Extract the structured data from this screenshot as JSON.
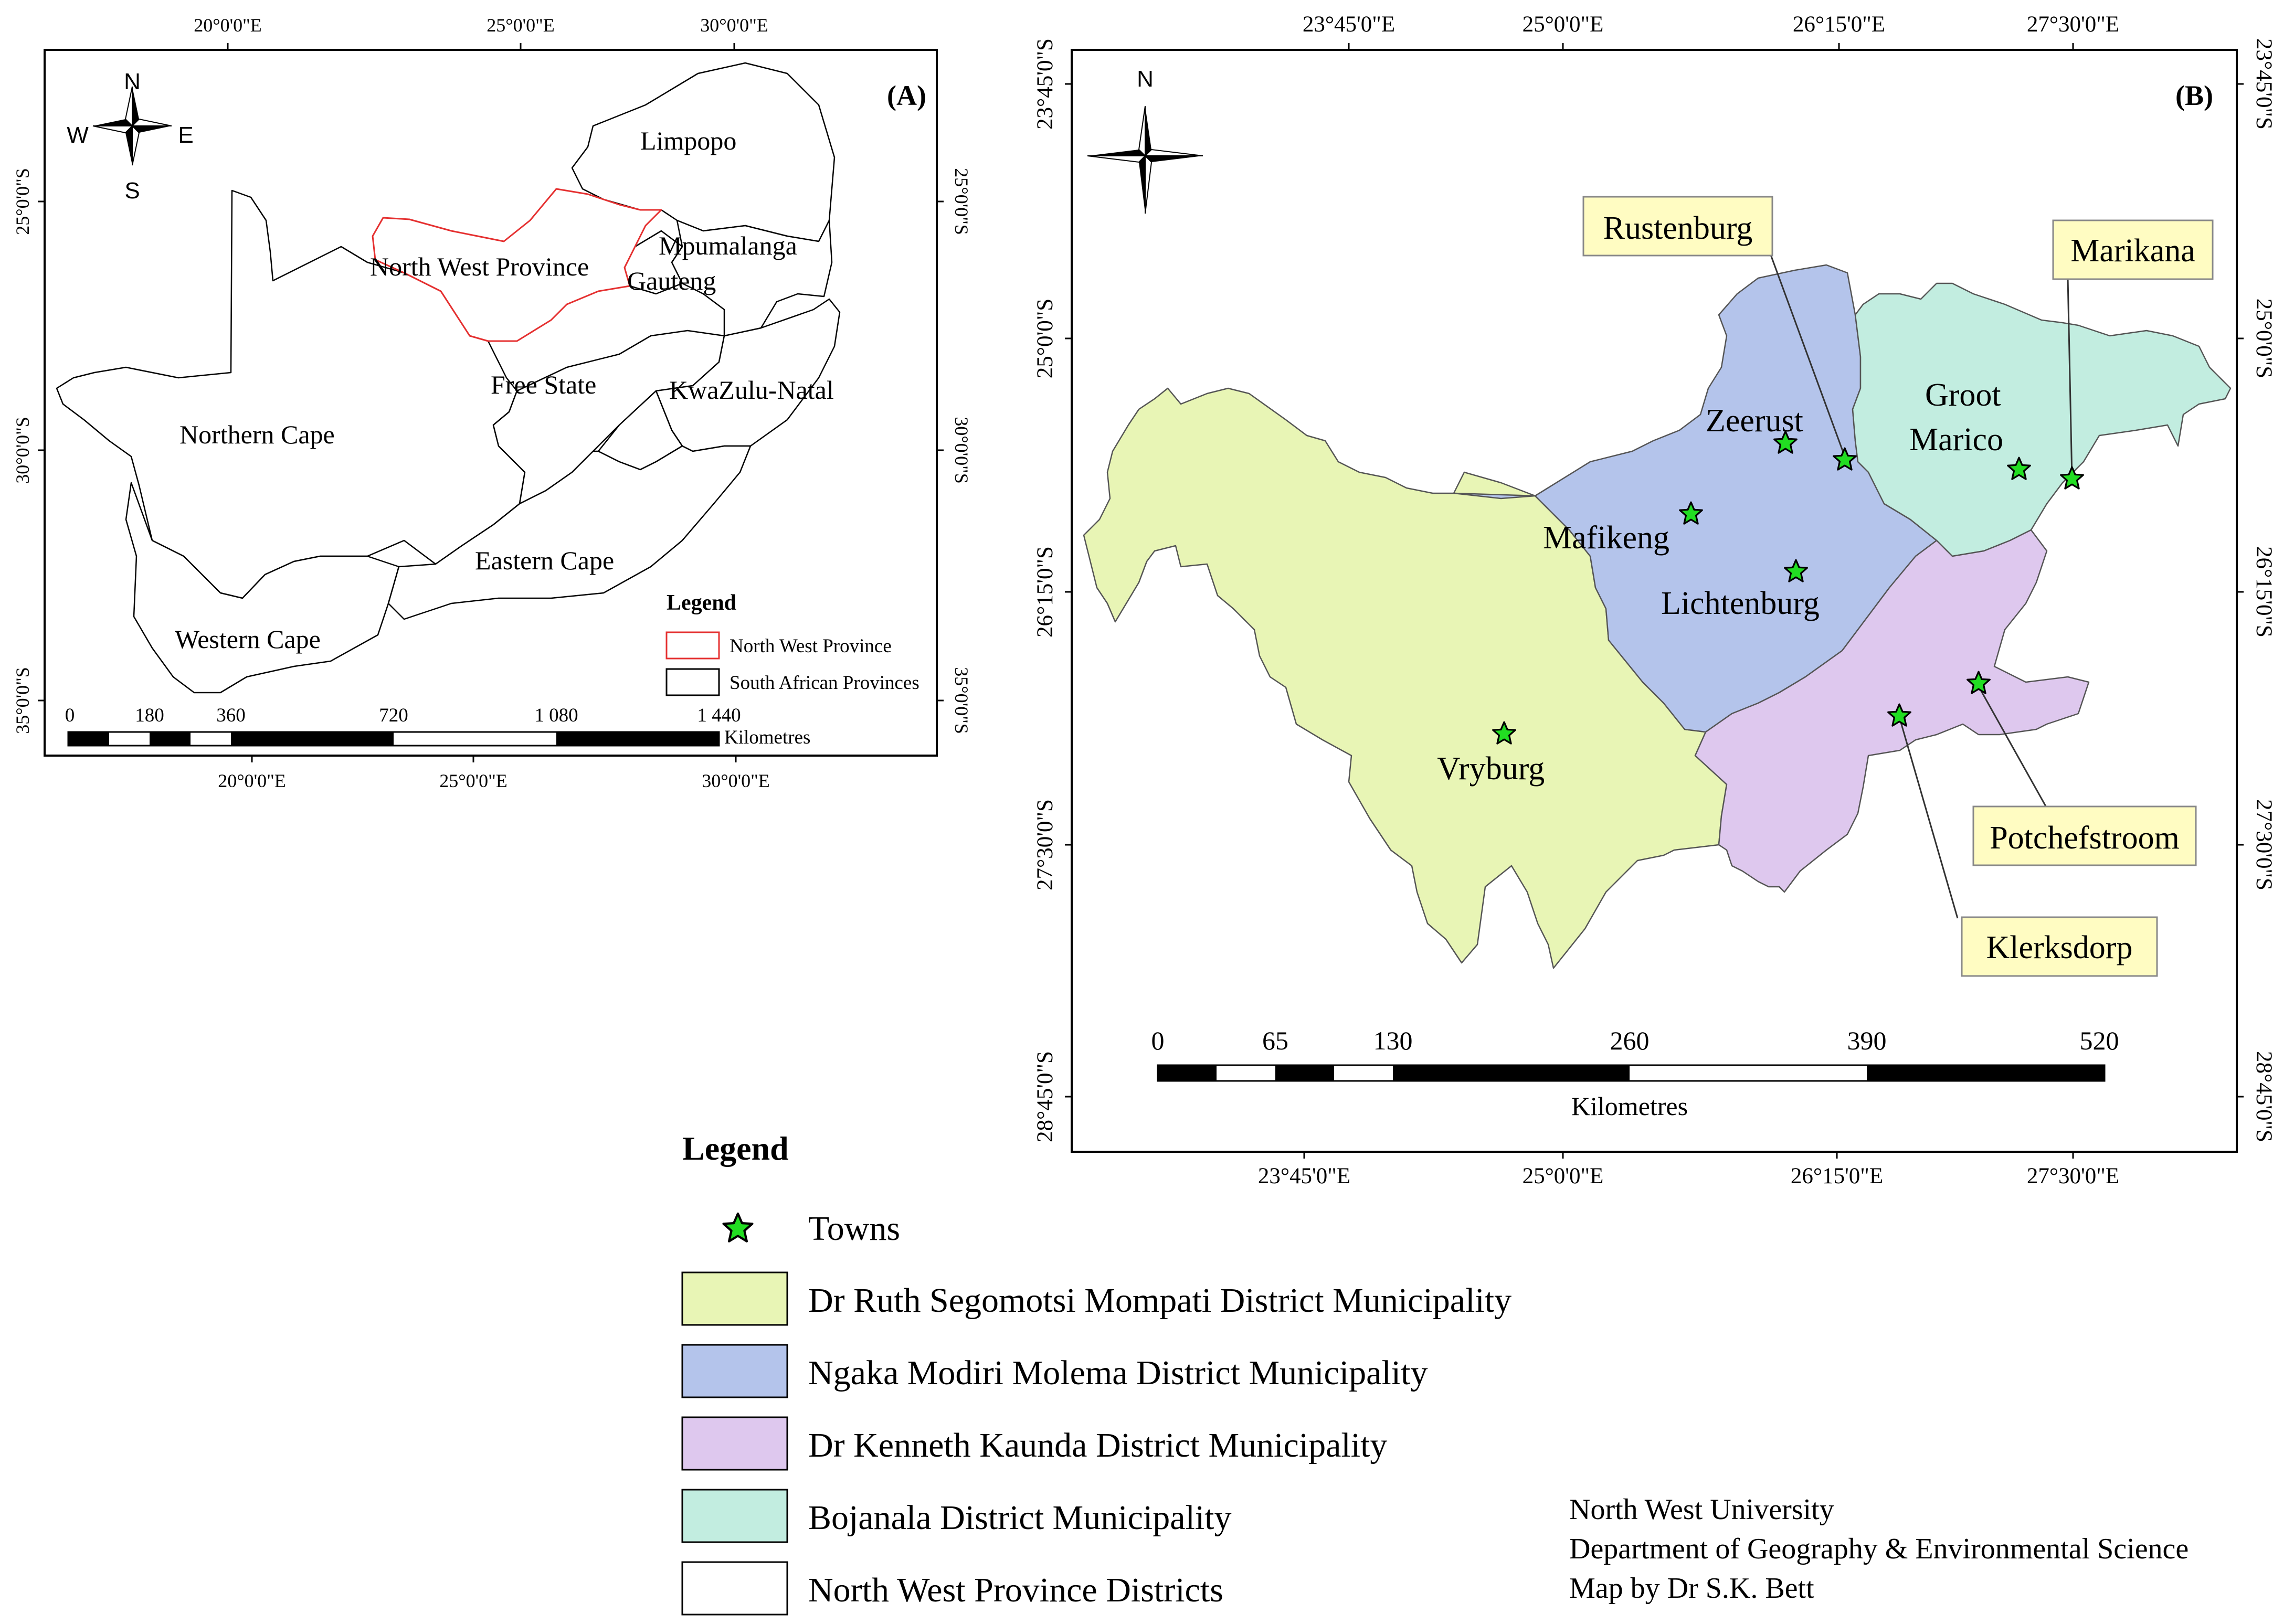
{
  "panel_a": {
    "tag": "(A)",
    "compass": {
      "n": "N",
      "s": "S",
      "e": "E",
      "w": "W"
    },
    "top_ticks": [
      "20°0'0\"E",
      "25°0'0\"E",
      "30°0'0\"E"
    ],
    "bottom_ticks": [
      "20°0'0\"E",
      "25°0'0\"E",
      "30°0'0\"E"
    ],
    "left_ticks": [
      "25°0'0\"S",
      "30°0'0\"S",
      "35°0'0\"S"
    ],
    "right_ticks": [
      "25°0'0\"S",
      "30°0'0\"S",
      "35°0'0\"S"
    ],
    "provinces": {
      "limpopo": "Limpopo",
      "mpumalanga": "Mpumalanga",
      "gauteng": "Gauteng",
      "north_west": "North West Province",
      "free_state": "Free State",
      "kwazulu_natal": "KwaZulu-Natal",
      "northern_cape": "Northern Cape",
      "eastern_cape": "Eastern Cape",
      "western_cape": "Western Cape"
    },
    "legend": {
      "title": "Legend",
      "north_west": "North West Province",
      "provinces": "South African Provinces"
    },
    "scale": {
      "labels": [
        "0",
        "180",
        "360",
        "720",
        "1 080",
        "1 440"
      ],
      "unit": "Kilometres"
    }
  },
  "panel_b": {
    "tag": "(B)",
    "compass": {
      "n": "N"
    },
    "top_ticks": [
      "23°45'0\"E",
      "25°0'0\"E",
      "26°15'0\"E",
      "27°30'0\"E"
    ],
    "bottom_ticks": [
      "23°45'0\"E",
      "25°0'0\"E",
      "26°15'0\"E",
      "27°30'0\"E"
    ],
    "left_ticks": [
      "23°45'0\"S",
      "25°0'0\"S",
      "26°15'0\"S",
      "27°30'0\"S",
      "28°45'0\"S"
    ],
    "right_ticks": [
      "23°45'0\"S",
      "25°0'0\"S",
      "26°15'0\"S",
      "27°30'0\"S",
      "28°45'0\"S"
    ],
    "towns": {
      "zeerust": "Zeerust",
      "groot_marico": [
        "Groot",
        "Marico"
      ],
      "mafikeng": "Mafikeng",
      "lichtenburg": "Lichtenburg",
      "vryburg": "Vryburg"
    },
    "callouts": {
      "rustenburg": "Rustenburg",
      "marikana": "Marikana",
      "potchefstroom": "Potchefstroom",
      "klerksdorp": "Klerksdorp"
    },
    "scale": {
      "labels": [
        "0",
        "65",
        "130",
        "260",
        "390",
        "520"
      ],
      "unit": "Kilometres"
    }
  },
  "legend": {
    "title": "Legend",
    "towns": "Towns",
    "ruth": "Dr Ruth Segomotsi Mompati District Municipality",
    "ngaka": "Ngaka Modiri Molema District Municipality",
    "kenneth": "Dr Kenneth Kaunda District Municipality",
    "bojanala": "Bojanala District Municipality",
    "nw_districts": "North West Province Districts"
  },
  "credits": {
    "line1": "North West University",
    "line2": "Department of Geography & Environmental Science",
    "line3": "Map by Dr S.K. Bett"
  },
  "colors": {
    "ruth": "#E8F5B5",
    "ngaka": "#B4C4EB",
    "kenneth": "#DEC8EE",
    "bojanala": "#C2EDE0",
    "star": "#22DD22",
    "callout": "#FFFCC2",
    "nw_outline": "#E53030"
  }
}
